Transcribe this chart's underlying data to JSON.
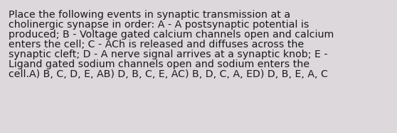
{
  "background_color": "#ddd8dc",
  "text_color": "#1a1a1a",
  "text_lines": [
    "Place the following events in synaptic transmission at a",
    "cholinergic synapse in order: A - A postsynaptic potential is",
    "produced; B - Voltage gated calcium channels open and calcium",
    "enters the cell; C - ACh is released and diffuses across the",
    "synaptic cleft; D - A nerve signal arrives at a synaptic knob; E -",
    "Ligand gated sodium channels open and sodium enters the",
    "cell.A) B, C, D, E, AB) D, B, C, E, AC) B, D, C, A, ED) D, B, E, A, C"
  ],
  "font_size": 10.2,
  "font_family": "DejaVu Sans",
  "figwidth": 5.58,
  "figheight": 1.88,
  "dpi": 100
}
